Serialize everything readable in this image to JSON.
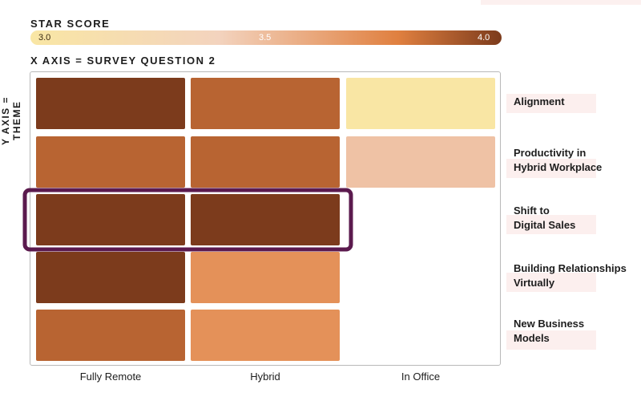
{
  "chart_data": {
    "type": "heatmap",
    "title": "STAR SCORE",
    "xlabel": "X AXIS = SURVEY QUESTION 2",
    "ylabel": "Y AXIS = THEME",
    "scale": {
      "min": 3.0,
      "max": 4.0,
      "ticks": [
        "3.0",
        "3.5",
        "4.0"
      ],
      "colors": [
        "#f9e6a4",
        "#f3d3be",
        "#e08040",
        "#7c3b1c"
      ]
    },
    "columns": [
      "Fully Remote",
      "Hybrid",
      "In Office"
    ],
    "rows": [
      "Alignment",
      "Productivity in\nHybrid Workplace",
      "Shift to\nDigital Sales",
      "Building Relationships\nVirtually",
      "New Business\nModels"
    ],
    "values": [
      [
        4.0,
        3.8,
        3.0
      ],
      [
        3.8,
        3.8,
        3.4
      ],
      [
        4.0,
        4.0,
        null
      ],
      [
        4.0,
        3.6,
        null
      ],
      [
        3.8,
        3.6,
        null
      ]
    ],
    "highlight_row": "Shift to\nDigital Sales",
    "highlight_color": "#5b1a4e",
    "grid": false
  }
}
